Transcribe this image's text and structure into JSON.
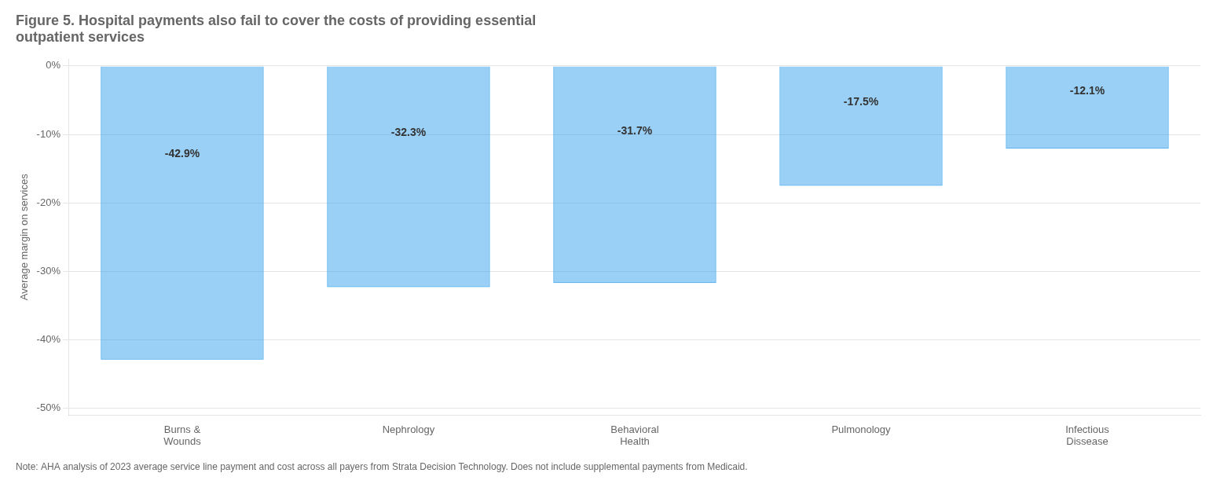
{
  "chart_data": {
    "type": "bar",
    "title": "Figure 5. Hospital payments also fail to cover the costs of providing essential\noutpatient services",
    "note": "Note: AHA analysis of 2023 average service line payment and cost across all payers from Strata Decision Technology. Does not include supplemental payments from Medicaid.",
    "categories": [
      "Burns &\nWounds",
      "Nephrology",
      "Behavioral\nHealth",
      "Pulmonology",
      "Infectious\nDissease"
    ],
    "values": [
      -42.9,
      -32.3,
      -31.7,
      -17.5,
      -12.1
    ],
    "value_labels": [
      "-42.9%",
      "-32.3%",
      "-31.7%",
      "-17.5%",
      "-12.1%"
    ],
    "data_labels": true,
    "ylabel": "Average margin on services",
    "ylim": [
      -51,
      1
    ],
    "yticks": [
      {
        "value": 0,
        "label": "0%"
      },
      {
        "value": -10,
        "label": "-10%"
      },
      {
        "value": -20,
        "label": "-20%"
      },
      {
        "value": -30,
        "label": "-30%"
      },
      {
        "value": -40,
        "label": "-40%"
      },
      {
        "value": -50,
        "label": "-50%"
      }
    ],
    "grid": true
  }
}
